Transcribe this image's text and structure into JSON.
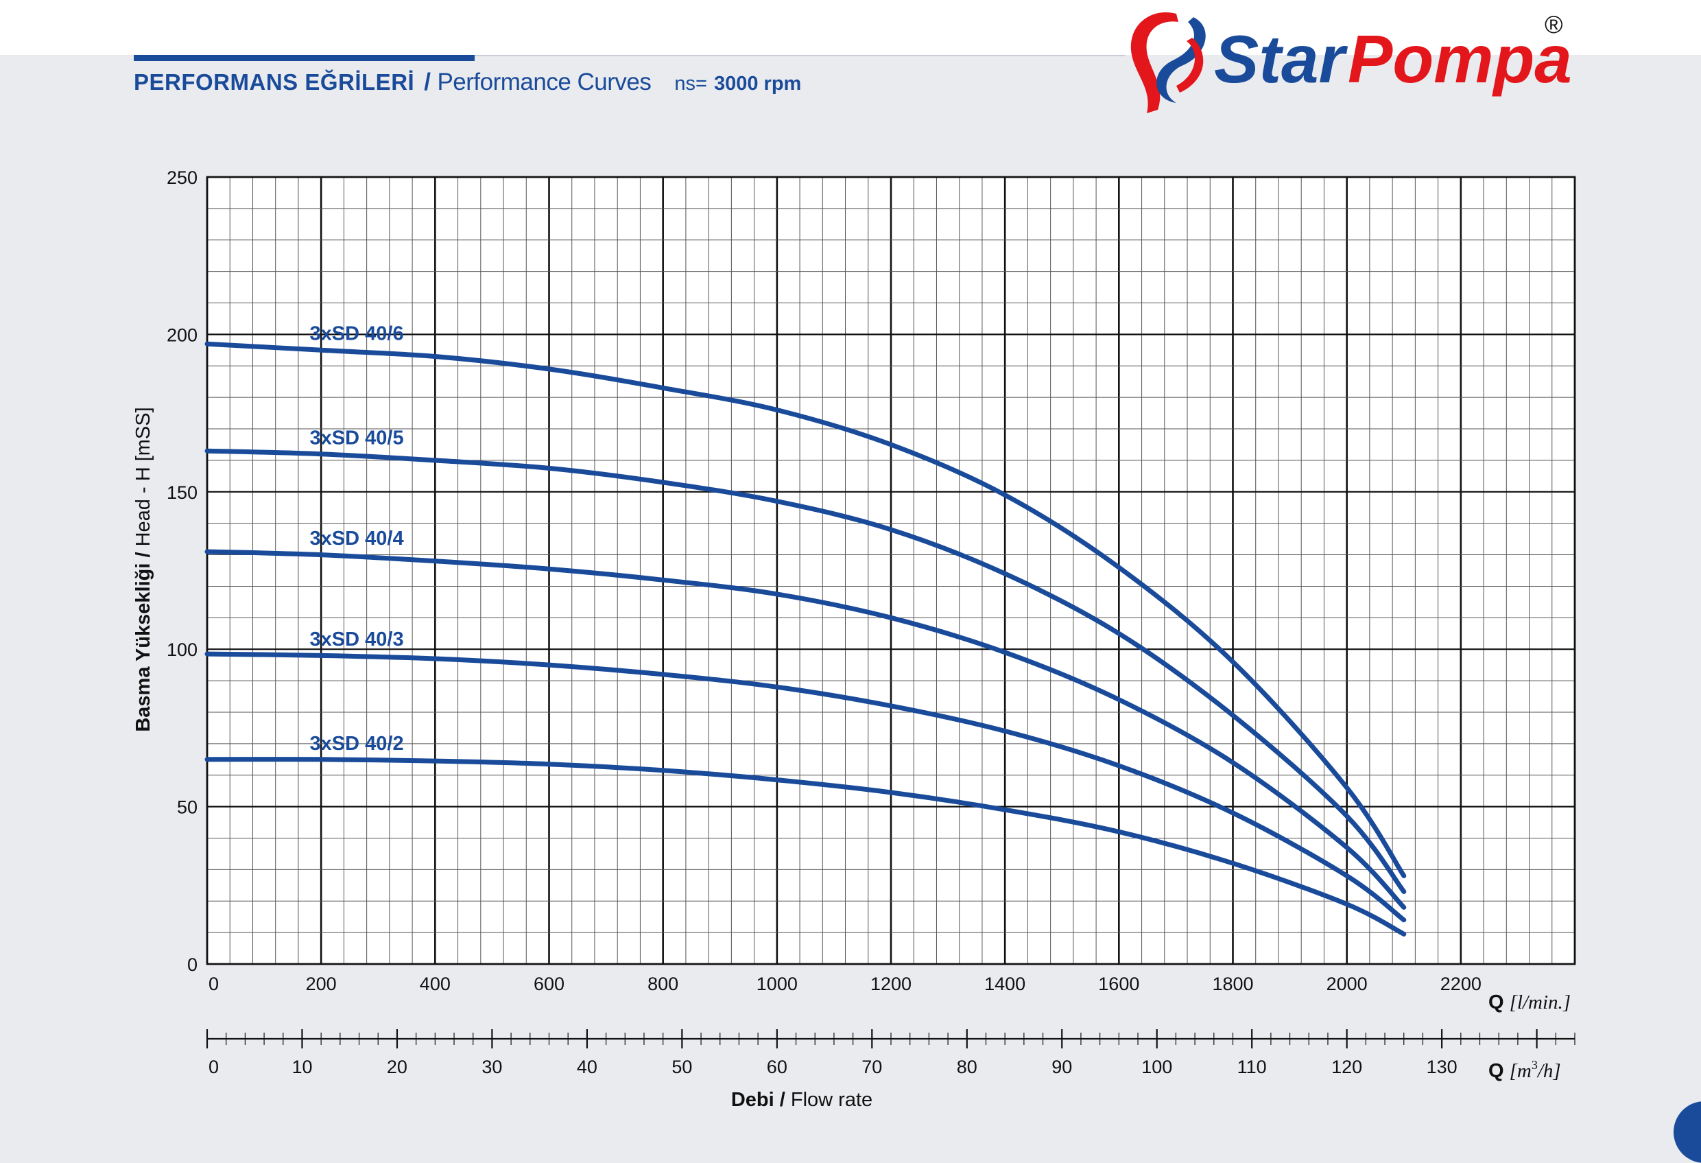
{
  "header": {
    "title_tr": "PERFORMANS EĞRİLERİ",
    "separator": "/",
    "title_en": "Performance Curves",
    "speed_label": "ns=",
    "speed_value": "3000 rpm"
  },
  "brand": {
    "name_part1": "Star",
    "name_part2": "Pompa",
    "registered": "®",
    "color_blue": "#1a4b9a",
    "color_red": "#e3161b"
  },
  "chart_data": {
    "type": "line",
    "title": "",
    "x": [
      0,
      200,
      400,
      600,
      800,
      1000,
      1200,
      1400,
      1600,
      1800,
      2000,
      2100
    ],
    "xlim": [
      0,
      2400
    ],
    "ylim": [
      0,
      250
    ],
    "x_ticks": [
      "0",
      "200",
      "400",
      "600",
      "800",
      "1000",
      "1200",
      "1400",
      "1600",
      "1800",
      "2000",
      "2200"
    ],
    "y_ticks": [
      "0",
      "50",
      "100",
      "150",
      "200",
      "250"
    ],
    "x2_ticks": [
      "0",
      "10",
      "20",
      "30",
      "40",
      "50",
      "60",
      "70",
      "80",
      "90",
      "100",
      "110",
      "120",
      "130"
    ],
    "x2lim": [
      0,
      144
    ],
    "grid": true,
    "xlabel_q": "Q",
    "xlabel_unit": "[l/min.]",
    "x2label_q": "Q",
    "x2label_unit_pre": "[m",
    "x2label_sup": "3",
    "x2label_unit_post": "/h]",
    "ylabel": "Basma Yüksekliği / Head - H [mSS]",
    "flow_title_bold": "Debi /",
    "flow_title_rest": " Flow rate",
    "line_color": "#1a4b9a",
    "series": [
      {
        "name": "3xSD 40/6",
        "label_x": 180,
        "values": [
          197,
          195,
          193,
          189,
          183,
          176,
          165,
          149,
          126,
          96,
          56,
          28
        ]
      },
      {
        "name": "3xSD 40/5",
        "label_x": 180,
        "values": [
          163,
          162,
          160,
          157.5,
          153,
          147,
          138,
          124,
          105,
          79,
          47,
          23
        ]
      },
      {
        "name": "3xSD 40/4",
        "label_x": 180,
        "values": [
          131,
          130,
          128,
          125.5,
          122,
          117.5,
          110,
          99,
          84,
          64,
          37,
          18
        ]
      },
      {
        "name": "3xSD 40/3",
        "label_x": 180,
        "values": [
          98.5,
          98,
          97,
          95,
          92,
          88,
          82,
          74,
          63,
          48,
          28,
          14
        ]
      },
      {
        "name": "3xSD 40/2",
        "label_x": 180,
        "values": [
          65,
          65,
          64.5,
          63.5,
          61.5,
          58.5,
          54.5,
          49,
          42,
          32,
          19,
          9.5
        ]
      }
    ]
  }
}
